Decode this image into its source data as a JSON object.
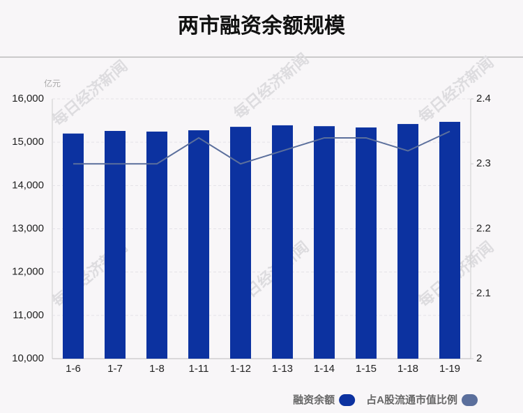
{
  "chart_data": {
    "type": "bar_line",
    "title": "两市融资余额规模",
    "y_unit": "亿元",
    "watermark": "每日经济新闻",
    "categories": [
      "1-6",
      "1-7",
      "1-8",
      "1-11",
      "1-12",
      "1-13",
      "1-14",
      "1-15",
      "1-18",
      "1-19"
    ],
    "series": [
      {
        "name": "融资余额",
        "type": "bar",
        "color": "#0c32a0",
        "values": [
          15200,
          15260,
          15245,
          15275,
          15355,
          15390,
          15370,
          15340,
          15420,
          15470
        ]
      },
      {
        "name": "占A股流通市值比例",
        "type": "line",
        "axis": "y2",
        "color": "#5b6f9c",
        "values": [
          2.3,
          2.3,
          2.3,
          2.34,
          2.3,
          2.32,
          2.34,
          2.34,
          2.32,
          2.35
        ]
      }
    ],
    "ylim": [
      10000,
      16000
    ],
    "yticks": [
      {
        "value": 10000,
        "label": "10,000"
      },
      {
        "value": 11000,
        "label": "11,000"
      },
      {
        "value": 12000,
        "label": "12,000"
      },
      {
        "value": 13000,
        "label": "13,000"
      },
      {
        "value": 14000,
        "label": "14,000"
      },
      {
        "value": 15000,
        "label": "15,000"
      },
      {
        "value": 16000,
        "label": "16,000"
      }
    ],
    "y2lim": [
      2,
      2.4
    ],
    "y2ticks": [
      2,
      2.1,
      2.2,
      2.3,
      2.4
    ],
    "grid": true,
    "legend": "bottom-right"
  }
}
